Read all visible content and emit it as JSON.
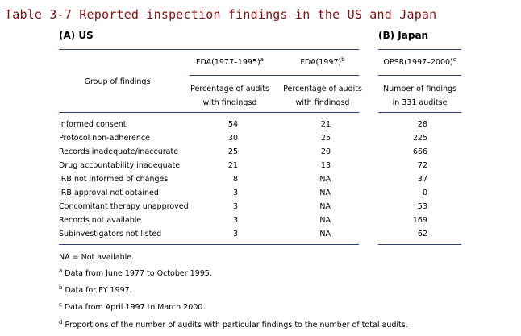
{
  "title": "Table 3-7  Reported inspection findings in the US and Japan",
  "section_us": "(A) US",
  "section_japan": "(B) Japan",
  "headers": {
    "group": "Group of findings",
    "col1_title": "FDA(1977–1995)",
    "col1_sup": "a",
    "col1_sub1": "Percentage of audits",
    "col1_sub2": "with findingsd",
    "col2_title": "FDA(1997)",
    "col2_sup": "b",
    "col2_sub1": "Percentage of audits",
    "col2_sub2": "with findingsd",
    "col3_title": "OPSR(1997–2000)",
    "col3_sup": "c",
    "col3_sub1": "Number of findings",
    "col3_sub2": "in 331 auditse"
  },
  "rows": [
    {
      "group": "Informed consent",
      "fda_1977_1995": "54",
      "fda_1997": "21",
      "opsr": "28"
    },
    {
      "group": "Protocol non-adherence",
      "fda_1977_1995": "30",
      "fda_1997": "25",
      "opsr": "225"
    },
    {
      "group": "Records inadequate/inaccurate",
      "fda_1977_1995": "25",
      "fda_1997": "20",
      "opsr": "666"
    },
    {
      "group": "Drug accountability inadequate",
      "fda_1977_1995": "21",
      "fda_1997": "13",
      "opsr": "72"
    },
    {
      "group": "IRB not informed of changes",
      "fda_1977_1995": "8",
      "fda_1997": "NA",
      "opsr": "37"
    },
    {
      "group": "IRB approval not obtained",
      "fda_1977_1995": "3",
      "fda_1997": "NA",
      "opsr": "0"
    },
    {
      "group": "Concomitant therapy unapproved",
      "fda_1977_1995": "3",
      "fda_1997": "NA",
      "opsr": "53"
    },
    {
      "group": "Records not available",
      "fda_1977_1995": "3",
      "fda_1997": "NA",
      "opsr": "169"
    },
    {
      "group": "Subinvestigators not listed",
      "fda_1977_1995": "3",
      "fda_1997": "NA",
      "opsr": "62"
    }
  ],
  "notes": {
    "na": "NA = Not available.",
    "a_mark": "a",
    "a_text": "Data from June 1977 to October 1995.",
    "b_mark": "b",
    "b_text": "Data for FY 1997.",
    "c_mark": "c",
    "c_text": "Data from April 1997 to March 2000.",
    "d_mark": "d",
    "d_text": "Proportions of the number of audits with particular findings to the number of total audits."
  }
}
